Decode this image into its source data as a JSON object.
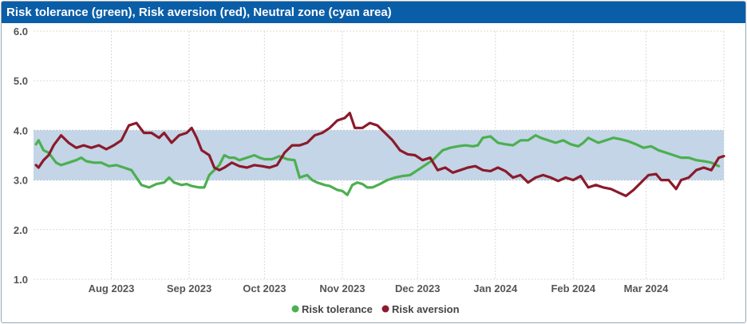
{
  "title": "Risk tolerance (green), Risk aversion (red), Neutral zone (cyan area)",
  "colors": {
    "title_bg": "#0a5ea8",
    "green": "#4caf50",
    "red": "#8b1a2b",
    "band": "#c3d5e6",
    "grid": "#d9d9d9"
  },
  "chart_data": {
    "type": "line",
    "title": "Risk tolerance (green), Risk aversion (red), Neutral zone (cyan area)",
    "xlabel": "",
    "ylabel": "",
    "ylim": [
      1.0,
      6.0
    ],
    "xlim": [
      "2023-07-01",
      "2024-04-01"
    ],
    "y_ticks": [
      "1.0",
      "2.0",
      "3.0",
      "4.0",
      "5.0",
      "6.0"
    ],
    "x_ticks": [
      {
        "date": "2023-08-01",
        "label": "Aug 2023"
      },
      {
        "date": "2023-09-01",
        "label": "Sep 2023"
      },
      {
        "date": "2023-10-01",
        "label": "Oct 2023"
      },
      {
        "date": "2023-11-01",
        "label": "Nov 2023"
      },
      {
        "date": "2023-12-01",
        "label": "Dec 2023"
      },
      {
        "date": "2024-01-01",
        "label": "Jan 2024"
      },
      {
        "date": "2024-02-01",
        "label": "Feb 2024"
      },
      {
        "date": "2024-03-01",
        "label": "Mar 2024"
      }
    ],
    "neutral_zone": [
      3.0,
      4.0
    ],
    "grid": true,
    "legend_position": "bottom-center",
    "series": [
      {
        "name": "Risk tolerance",
        "color": "#4caf50",
        "points": [
          [
            "2023-07-02",
            3.72
          ],
          [
            "2023-07-03",
            3.8
          ],
          [
            "2023-07-05",
            3.6
          ],
          [
            "2023-07-07",
            3.55
          ],
          [
            "2023-07-10",
            3.35
          ],
          [
            "2023-07-12",
            3.3
          ],
          [
            "2023-07-15",
            3.35
          ],
          [
            "2023-07-18",
            3.4
          ],
          [
            "2023-07-20",
            3.45
          ],
          [
            "2023-07-22",
            3.38
          ],
          [
            "2023-07-25",
            3.35
          ],
          [
            "2023-07-28",
            3.35
          ],
          [
            "2023-07-31",
            3.28
          ],
          [
            "2023-08-03",
            3.3
          ],
          [
            "2023-08-06",
            3.25
          ],
          [
            "2023-08-09",
            3.2
          ],
          [
            "2023-08-11",
            3.05
          ],
          [
            "2023-08-13",
            2.9
          ],
          [
            "2023-08-16",
            2.85
          ],
          [
            "2023-08-19",
            2.92
          ],
          [
            "2023-08-22",
            2.95
          ],
          [
            "2023-08-24",
            3.05
          ],
          [
            "2023-08-26",
            2.95
          ],
          [
            "2023-08-29",
            2.9
          ],
          [
            "2023-08-31",
            2.92
          ],
          [
            "2023-09-02",
            2.88
          ],
          [
            "2023-09-05",
            2.85
          ],
          [
            "2023-09-07",
            2.85
          ],
          [
            "2023-09-09",
            3.1
          ],
          [
            "2023-09-11",
            3.2
          ],
          [
            "2023-09-13",
            3.3
          ],
          [
            "2023-09-15",
            3.5
          ],
          [
            "2023-09-17",
            3.45
          ],
          [
            "2023-09-19",
            3.45
          ],
          [
            "2023-09-21",
            3.4
          ],
          [
            "2023-09-24",
            3.45
          ],
          [
            "2023-09-27",
            3.5
          ],
          [
            "2023-09-29",
            3.45
          ],
          [
            "2023-10-01",
            3.42
          ],
          [
            "2023-10-04",
            3.42
          ],
          [
            "2023-10-07",
            3.48
          ],
          [
            "2023-10-10",
            3.42
          ],
          [
            "2023-10-13",
            3.4
          ],
          [
            "2023-10-15",
            3.05
          ],
          [
            "2023-10-18",
            3.1
          ],
          [
            "2023-10-20",
            3.0
          ],
          [
            "2023-10-22",
            2.95
          ],
          [
            "2023-10-25",
            2.9
          ],
          [
            "2023-10-27",
            2.88
          ],
          [
            "2023-10-30",
            2.8
          ],
          [
            "2023-11-01",
            2.78
          ],
          [
            "2023-11-03",
            2.7
          ],
          [
            "2023-11-05",
            2.9
          ],
          [
            "2023-11-07",
            2.95
          ],
          [
            "2023-11-09",
            2.92
          ],
          [
            "2023-11-11",
            2.85
          ],
          [
            "2023-11-13",
            2.85
          ],
          [
            "2023-11-16",
            2.92
          ],
          [
            "2023-11-19",
            3.0
          ],
          [
            "2023-11-22",
            3.05
          ],
          [
            "2023-11-25",
            3.08
          ],
          [
            "2023-11-28",
            3.1
          ],
          [
            "2023-12-01",
            3.2
          ],
          [
            "2023-12-04",
            3.3
          ],
          [
            "2023-12-07",
            3.4
          ],
          [
            "2023-12-09",
            3.5
          ],
          [
            "2023-12-11",
            3.6
          ],
          [
            "2023-12-14",
            3.65
          ],
          [
            "2023-12-17",
            3.68
          ],
          [
            "2023-12-20",
            3.7
          ],
          [
            "2023-12-23",
            3.68
          ],
          [
            "2023-12-25",
            3.7
          ],
          [
            "2023-12-27",
            3.85
          ],
          [
            "2023-12-30",
            3.88
          ],
          [
            "2024-01-02",
            3.75
          ],
          [
            "2024-01-05",
            3.72
          ],
          [
            "2024-01-08",
            3.7
          ],
          [
            "2024-01-11",
            3.8
          ],
          [
            "2024-01-14",
            3.8
          ],
          [
            "2024-01-17",
            3.9
          ],
          [
            "2024-01-19",
            3.85
          ],
          [
            "2024-01-22",
            3.8
          ],
          [
            "2024-01-25",
            3.75
          ],
          [
            "2024-01-28",
            3.8
          ],
          [
            "2024-01-31",
            3.72
          ],
          [
            "2024-02-03",
            3.68
          ],
          [
            "2024-02-05",
            3.75
          ],
          [
            "2024-02-07",
            3.85
          ],
          [
            "2024-02-09",
            3.8
          ],
          [
            "2024-02-11",
            3.75
          ],
          [
            "2024-02-14",
            3.8
          ],
          [
            "2024-02-17",
            3.85
          ],
          [
            "2024-02-20",
            3.82
          ],
          [
            "2024-02-23",
            3.78
          ],
          [
            "2024-02-26",
            3.72
          ],
          [
            "2024-02-29",
            3.65
          ],
          [
            "2024-03-03",
            3.68
          ],
          [
            "2024-03-06",
            3.6
          ],
          [
            "2024-03-09",
            3.55
          ],
          [
            "2024-03-12",
            3.5
          ],
          [
            "2024-03-15",
            3.45
          ],
          [
            "2024-03-18",
            3.45
          ],
          [
            "2024-03-21",
            3.4
          ],
          [
            "2024-03-24",
            3.38
          ],
          [
            "2024-03-27",
            3.35
          ],
          [
            "2024-03-30",
            3.28
          ]
        ]
      },
      {
        "name": "Risk aversion",
        "color": "#8b1a2b",
        "points": [
          [
            "2023-07-02",
            3.3
          ],
          [
            "2023-07-03",
            3.25
          ],
          [
            "2023-07-05",
            3.4
          ],
          [
            "2023-07-07",
            3.5
          ],
          [
            "2023-07-09",
            3.7
          ],
          [
            "2023-07-12",
            3.9
          ],
          [
            "2023-07-15",
            3.75
          ],
          [
            "2023-07-18",
            3.65
          ],
          [
            "2023-07-21",
            3.7
          ],
          [
            "2023-07-24",
            3.65
          ],
          [
            "2023-07-27",
            3.7
          ],
          [
            "2023-07-30",
            3.62
          ],
          [
            "2023-08-02",
            3.7
          ],
          [
            "2023-08-05",
            3.8
          ],
          [
            "2023-08-08",
            4.1
          ],
          [
            "2023-08-11",
            4.15
          ],
          [
            "2023-08-14",
            3.95
          ],
          [
            "2023-08-17",
            3.95
          ],
          [
            "2023-08-20",
            3.85
          ],
          [
            "2023-08-22",
            3.95
          ],
          [
            "2023-08-25",
            3.75
          ],
          [
            "2023-08-28",
            3.9
          ],
          [
            "2023-08-31",
            3.95
          ],
          [
            "2023-09-02",
            4.05
          ],
          [
            "2023-09-04",
            3.85
          ],
          [
            "2023-09-06",
            3.6
          ],
          [
            "2023-09-09",
            3.5
          ],
          [
            "2023-09-11",
            3.25
          ],
          [
            "2023-09-13",
            3.2
          ],
          [
            "2023-09-15",
            3.25
          ],
          [
            "2023-09-18",
            3.35
          ],
          [
            "2023-09-21",
            3.28
          ],
          [
            "2023-09-24",
            3.25
          ],
          [
            "2023-09-27",
            3.3
          ],
          [
            "2023-09-30",
            3.28
          ],
          [
            "2023-10-03",
            3.25
          ],
          [
            "2023-10-06",
            3.3
          ],
          [
            "2023-10-09",
            3.55
          ],
          [
            "2023-10-12",
            3.7
          ],
          [
            "2023-10-15",
            3.7
          ],
          [
            "2023-10-18",
            3.75
          ],
          [
            "2023-10-21",
            3.9
          ],
          [
            "2023-10-24",
            3.95
          ],
          [
            "2023-10-27",
            4.05
          ],
          [
            "2023-10-30",
            4.2
          ],
          [
            "2023-11-02",
            4.25
          ],
          [
            "2023-11-04",
            4.35
          ],
          [
            "2023-11-06",
            4.05
          ],
          [
            "2023-11-09",
            4.05
          ],
          [
            "2023-11-12",
            4.15
          ],
          [
            "2023-11-15",
            4.1
          ],
          [
            "2023-11-18",
            3.95
          ],
          [
            "2023-11-21",
            3.8
          ],
          [
            "2023-11-24",
            3.6
          ],
          [
            "2023-11-27",
            3.52
          ],
          [
            "2023-11-30",
            3.5
          ],
          [
            "2023-12-03",
            3.4
          ],
          [
            "2023-12-06",
            3.45
          ],
          [
            "2023-12-09",
            3.2
          ],
          [
            "2023-12-12",
            3.25
          ],
          [
            "2023-12-15",
            3.15
          ],
          [
            "2023-12-18",
            3.2
          ],
          [
            "2023-12-21",
            3.25
          ],
          [
            "2023-12-24",
            3.28
          ],
          [
            "2023-12-27",
            3.2
          ],
          [
            "2023-12-30",
            3.18
          ],
          [
            "2024-01-02",
            3.25
          ],
          [
            "2024-01-05",
            3.18
          ],
          [
            "2024-01-08",
            3.05
          ],
          [
            "2024-01-11",
            3.1
          ],
          [
            "2024-01-14",
            2.95
          ],
          [
            "2024-01-17",
            3.05
          ],
          [
            "2024-01-20",
            3.1
          ],
          [
            "2024-01-23",
            3.05
          ],
          [
            "2024-01-26",
            2.98
          ],
          [
            "2024-01-29",
            3.05
          ],
          [
            "2024-02-01",
            3.0
          ],
          [
            "2024-02-04",
            3.08
          ],
          [
            "2024-02-07",
            2.85
          ],
          [
            "2024-02-10",
            2.9
          ],
          [
            "2024-02-13",
            2.85
          ],
          [
            "2024-02-16",
            2.82
          ],
          [
            "2024-02-19",
            2.75
          ],
          [
            "2024-02-22",
            2.68
          ],
          [
            "2024-02-25",
            2.8
          ],
          [
            "2024-02-28",
            2.95
          ],
          [
            "2024-03-02",
            3.1
          ],
          [
            "2024-03-05",
            3.12
          ],
          [
            "2024-03-07",
            3.0
          ],
          [
            "2024-03-10",
            3.0
          ],
          [
            "2024-03-13",
            2.82
          ],
          [
            "2024-03-15",
            3.0
          ],
          [
            "2024-03-18",
            3.05
          ],
          [
            "2024-03-21",
            3.2
          ],
          [
            "2024-03-24",
            3.25
          ],
          [
            "2024-03-27",
            3.2
          ],
          [
            "2024-03-30",
            3.45
          ],
          [
            "2024-04-01",
            3.48
          ]
        ]
      }
    ]
  }
}
